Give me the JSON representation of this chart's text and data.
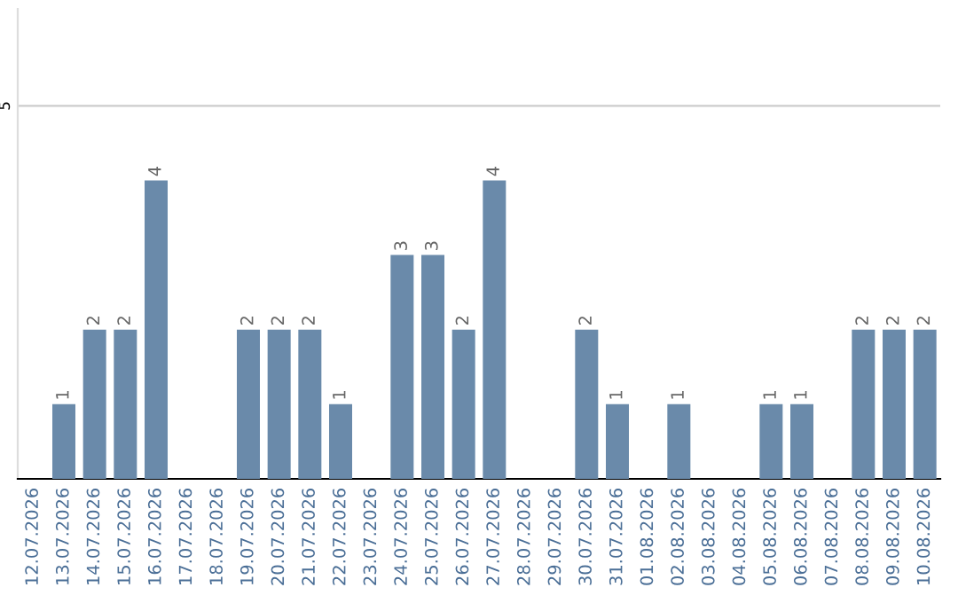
{
  "chart_data": {
    "type": "bar",
    "categories": [
      "12.07.2026",
      "13.07.2026",
      "14.07.2026",
      "15.07.2026",
      "16.07.2026",
      "17.07.2026",
      "18.07.2026",
      "19.07.2026",
      "20.07.2026",
      "21.07.2026",
      "22.07.2026",
      "23.07.2026",
      "24.07.2026",
      "25.07.2026",
      "26.07.2026",
      "27.07.2026",
      "28.07.2026",
      "29.07.2026",
      "30.07.2026",
      "31.07.2026",
      "01.08.2026",
      "02.08.2026",
      "03.08.2026",
      "04.08.2026",
      "05.08.2026",
      "06.08.2026",
      "07.08.2026",
      "08.08.2026",
      "09.08.2026",
      "10.08.2026"
    ],
    "values": [
      0,
      1,
      2,
      2,
      4,
      0,
      0,
      2,
      2,
      2,
      1,
      0,
      3,
      3,
      2,
      4,
      0,
      0,
      2,
      1,
      0,
      1,
      0,
      0,
      1,
      1,
      0,
      2,
      2,
      2
    ],
    "value_labels": [
      null,
      "1",
      "2",
      "2",
      "4",
      null,
      null,
      "2",
      "2",
      "2",
      "1",
      null,
      "3",
      "3",
      "2",
      "4",
      null,
      null,
      "2",
      "1",
      null,
      "1",
      null,
      null,
      "1",
      "1",
      null,
      "2",
      "2",
      "2"
    ],
    "color": "#6a8aaa",
    "ylim": [
      0,
      6.3
    ],
    "yticks": [
      5
    ],
    "grid": "y"
  }
}
